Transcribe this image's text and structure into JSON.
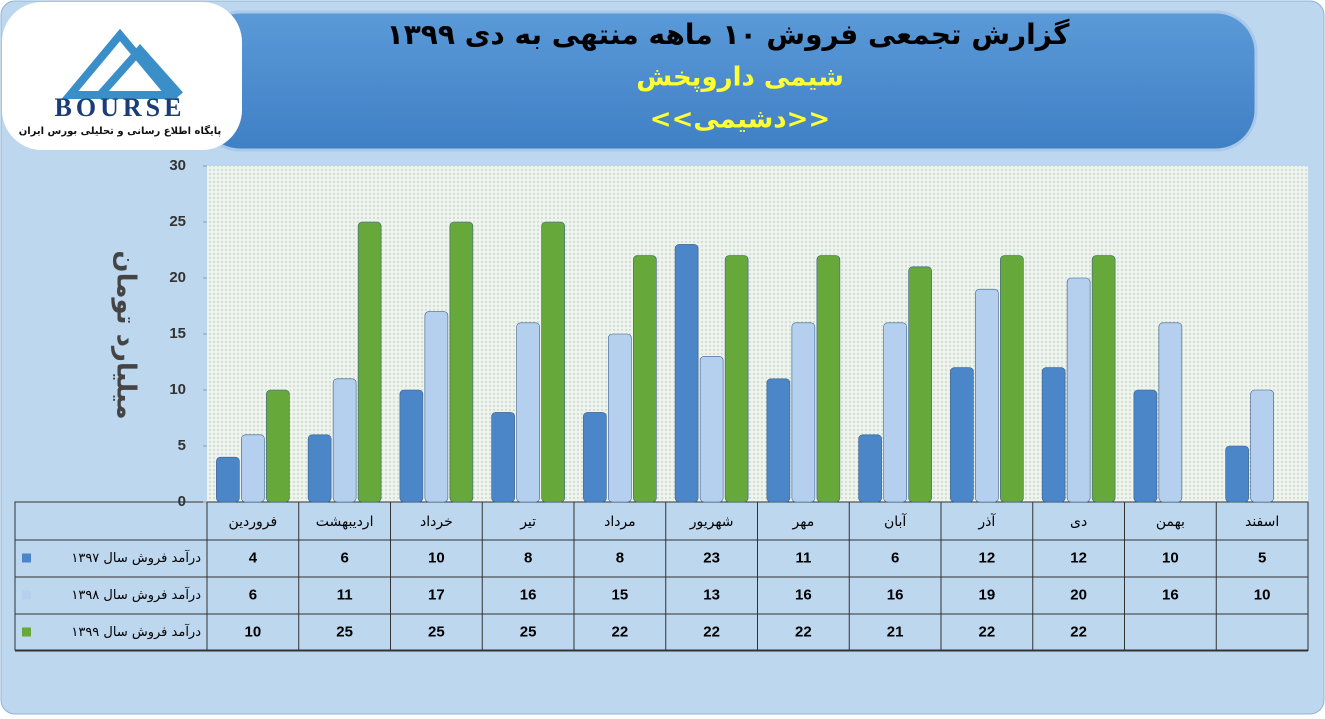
{
  "chart_data": {
    "type": "bar",
    "title": "گزارش تجمعی فروش ۱۰ ماهه منتهی به دی ۱۳۹۹",
    "subtitle": "شیمی داروپخش",
    "symbol": "<<دشیمی>>",
    "y_label": "میلیارد تومان",
    "logo": {
      "name": "BOURSE",
      "tagline": "پایگاه اطلاع رسانی و تحلیلی بورس ایران"
    },
    "categories": [
      "فروردین",
      "اردیبهشت",
      "خرداد",
      "تیر",
      "مرداد",
      "شهریور",
      "مهر",
      "آبان",
      "آذر",
      "دی",
      "بهمن",
      "اسفند"
    ],
    "series": [
      {
        "name": "درآمد فروش سال ۱۳۹۷",
        "color": "#4a86c8",
        "values": [
          4,
          6,
          10,
          8,
          8,
          23,
          11,
          6,
          12,
          12,
          10,
          5
        ]
      },
      {
        "name": "درآمد فروش سال ۱۳۹۸",
        "color": "#b4d0ee",
        "values": [
          6,
          11,
          17,
          16,
          15,
          13,
          16,
          16,
          19,
          20,
          16,
          10
        ]
      },
      {
        "name": "درآمد فروش سال ۱۳۹۹",
        "color": "#66a83a",
        "values": [
          10,
          25,
          25,
          25,
          22,
          22,
          22,
          21,
          22,
          22,
          null,
          null
        ]
      }
    ],
    "ylim": [
      0,
      30
    ],
    "yticks": [
      0,
      5,
      10,
      15,
      20,
      25,
      30
    ]
  }
}
